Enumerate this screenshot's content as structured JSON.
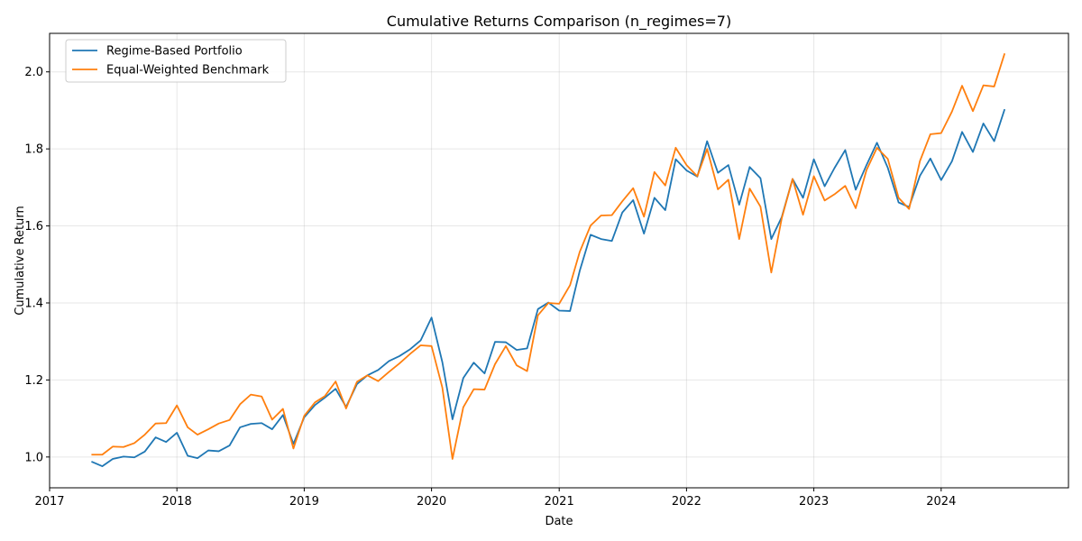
{
  "chart_data": {
    "type": "line",
    "title": "Cumulative Returns Comparison (n_regimes=7)",
    "xlabel": "Date",
    "ylabel": "Cumulative Return",
    "xlim": [
      "2017-01-01",
      "2024-12-31"
    ],
    "ylim": [
      0.92,
      2.1
    ],
    "grid": true,
    "legend_position": "top-left",
    "x_ticks": [
      {
        "date": "2017-01-01",
        "label": "2017"
      },
      {
        "date": "2018-01-01",
        "label": "2018"
      },
      {
        "date": "2019-01-01",
        "label": "2019"
      },
      {
        "date": "2020-01-01",
        "label": "2020"
      },
      {
        "date": "2021-01-01",
        "label": "2021"
      },
      {
        "date": "2022-01-01",
        "label": "2022"
      },
      {
        "date": "2023-01-01",
        "label": "2023"
      },
      {
        "date": "2024-01-01",
        "label": "2024"
      }
    ],
    "y_ticks": [
      {
        "value": 1.0,
        "label": "1.0"
      },
      {
        "value": 1.2,
        "label": "1.2"
      },
      {
        "value": 1.4,
        "label": "1.4"
      },
      {
        "value": 1.6,
        "label": "1.6"
      },
      {
        "value": 1.8,
        "label": "1.8"
      },
      {
        "value": 2.0,
        "label": "2.0"
      }
    ],
    "x": [
      "2017-05-01",
      "2017-06-01",
      "2017-07-01",
      "2017-08-01",
      "2017-09-01",
      "2017-10-01",
      "2017-11-01",
      "2017-12-01",
      "2018-01-01",
      "2018-02-01",
      "2018-03-01",
      "2018-04-01",
      "2018-05-01",
      "2018-06-01",
      "2018-07-01",
      "2018-08-01",
      "2018-09-01",
      "2018-10-01",
      "2018-11-01",
      "2018-12-01",
      "2019-01-01",
      "2019-02-01",
      "2019-03-01",
      "2019-04-01",
      "2019-05-01",
      "2019-06-01",
      "2019-07-01",
      "2019-08-01",
      "2019-09-01",
      "2019-10-01",
      "2019-11-01",
      "2019-12-01",
      "2020-01-01",
      "2020-02-01",
      "2020-03-01",
      "2020-04-01",
      "2020-05-01",
      "2020-06-01",
      "2020-07-01",
      "2020-08-01",
      "2020-09-01",
      "2020-10-01",
      "2020-11-01",
      "2020-12-01",
      "2021-01-01",
      "2021-02-01",
      "2021-03-01",
      "2021-04-01",
      "2021-05-01",
      "2021-06-01",
      "2021-07-01",
      "2021-08-01",
      "2021-09-01",
      "2021-10-01",
      "2021-11-01",
      "2021-12-01",
      "2022-01-01",
      "2022-02-01",
      "2022-03-01",
      "2022-04-01",
      "2022-05-01",
      "2022-06-01",
      "2022-07-01",
      "2022-08-01",
      "2022-09-01",
      "2022-10-01",
      "2022-11-01",
      "2022-12-01",
      "2023-01-01",
      "2023-02-01",
      "2023-03-01",
      "2023-04-01",
      "2023-05-01",
      "2023-06-01",
      "2023-07-01",
      "2023-08-01",
      "2023-09-01",
      "2023-10-01",
      "2023-11-01",
      "2023-12-01",
      "2024-01-01",
      "2024-02-01",
      "2024-03-01",
      "2024-04-01",
      "2024-05-01",
      "2024-06-01",
      "2024-07-01"
    ],
    "series": [
      {
        "name": "Regime-Based Portfolio",
        "color": "#1f77b4",
        "values": [
          0.988,
          0.976,
          0.995,
          1.001,
          0.999,
          1.014,
          1.051,
          1.039,
          1.063,
          1.003,
          0.997,
          1.017,
          1.015,
          1.03,
          1.077,
          1.086,
          1.088,
          1.072,
          1.109,
          1.034,
          1.103,
          1.135,
          1.154,
          1.177,
          1.13,
          1.189,
          1.212,
          1.226,
          1.249,
          1.262,
          1.28,
          1.303,
          1.362,
          1.246,
          1.098,
          1.205,
          1.245,
          1.217,
          1.299,
          1.298,
          1.278,
          1.282,
          1.384,
          1.401,
          1.38,
          1.379,
          1.484,
          1.577,
          1.566,
          1.561,
          1.635,
          1.667,
          1.58,
          1.673,
          1.641,
          1.773,
          1.744,
          1.728,
          1.82,
          1.738,
          1.758,
          1.655,
          1.753,
          1.724,
          1.566,
          1.623,
          1.722,
          1.673,
          1.773,
          1.703,
          1.75,
          1.797,
          1.694,
          1.758,
          1.816,
          1.751,
          1.661,
          1.649,
          1.73,
          1.775,
          1.719,
          1.768,
          1.844,
          1.792,
          1.866,
          1.82,
          1.903
        ]
      },
      {
        "name": "Equal-Weighted Benchmark",
        "color": "#ff7f0e",
        "values": [
          1.006,
          1.006,
          1.027,
          1.026,
          1.036,
          1.058,
          1.087,
          1.088,
          1.134,
          1.077,
          1.058,
          1.072,
          1.087,
          1.096,
          1.137,
          1.162,
          1.157,
          1.097,
          1.125,
          1.022,
          1.107,
          1.142,
          1.158,
          1.196,
          1.126,
          1.195,
          1.212,
          1.197,
          1.221,
          1.243,
          1.268,
          1.29,
          1.288,
          1.18,
          0.995,
          1.129,
          1.176,
          1.175,
          1.241,
          1.288,
          1.238,
          1.223,
          1.368,
          1.4,
          1.398,
          1.446,
          1.533,
          1.601,
          1.627,
          1.628,
          1.664,
          1.698,
          1.624,
          1.74,
          1.705,
          1.803,
          1.758,
          1.729,
          1.8,
          1.695,
          1.72,
          1.566,
          1.697,
          1.65,
          1.479,
          1.62,
          1.722,
          1.629,
          1.729,
          1.666,
          1.682,
          1.704,
          1.646,
          1.745,
          1.803,
          1.774,
          1.673,
          1.644,
          1.768,
          1.838,
          1.841,
          1.897,
          1.964,
          1.898,
          1.965,
          1.962,
          2.048
        ]
      }
    ]
  }
}
